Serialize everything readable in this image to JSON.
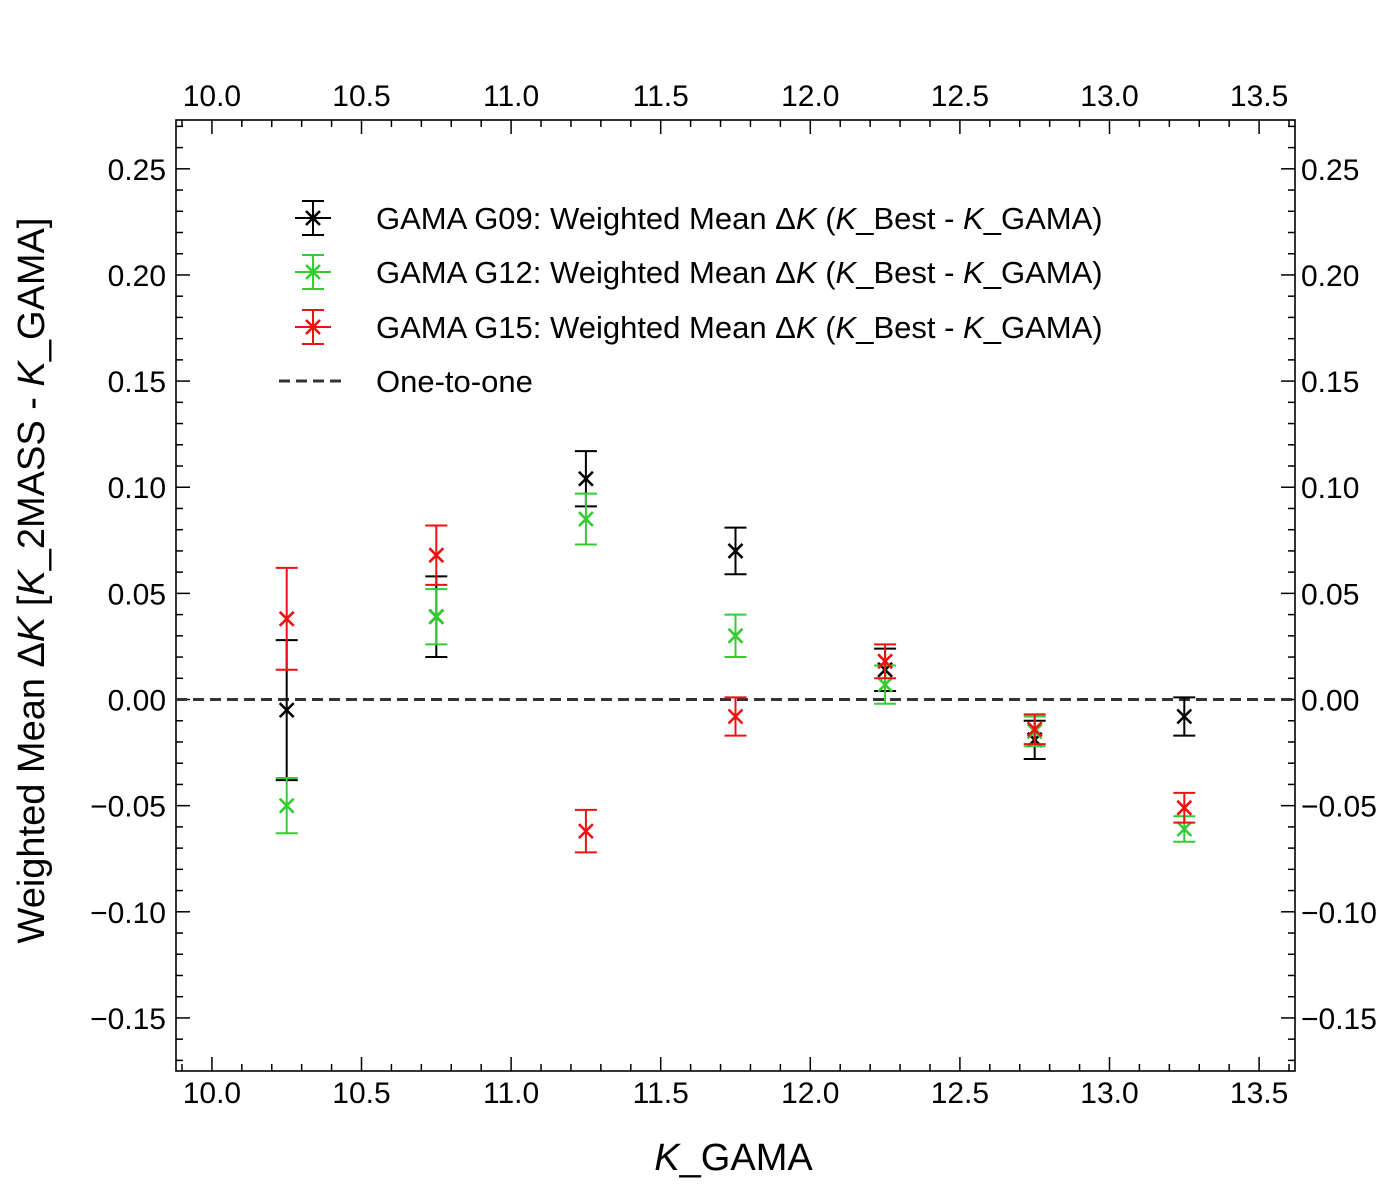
{
  "chart_data": {
    "type": "scatter",
    "title": "",
    "xlabel_italic": "K",
    "xlabel_rest": "_GAMA",
    "ylabel_parts": [
      {
        "text": "Weighted Mean Δ",
        "italic": false
      },
      {
        "text": "K",
        "italic": true
      },
      {
        "text": " [",
        "italic": false
      },
      {
        "text": "K",
        "italic": true
      },
      {
        "text": "_2MASS - ",
        "italic": false
      },
      {
        "text": "K",
        "italic": true
      },
      {
        "text": "_GAMA]",
        "italic": false
      }
    ],
    "xlim": [
      9.88,
      13.62
    ],
    "ylim": [
      -0.175,
      0.273
    ],
    "xticks": [
      10.0,
      10.5,
      11.0,
      11.5,
      12.0,
      12.5,
      13.0,
      13.5
    ],
    "xtick_labels": [
      "10.0",
      "10.5",
      "11.0",
      "11.5",
      "12.0",
      "12.5",
      "13.0",
      "13.5"
    ],
    "yticks": [
      -0.15,
      -0.1,
      -0.05,
      0.0,
      0.05,
      0.1,
      0.15,
      0.2,
      0.25
    ],
    "ytick_labels": [
      "−0.15",
      "−0.10",
      "−0.05",
      "0.00",
      "0.05",
      "0.10",
      "0.15",
      "0.20",
      "0.25"
    ],
    "x": [
      10.25,
      10.75,
      11.25,
      11.75,
      12.25,
      12.75,
      13.25
    ],
    "series": [
      {
        "name": "GAMA G09",
        "legend_parts": [
          {
            "text": "GAMA G09: Weighted Mean Δ",
            "italic": false
          },
          {
            "text": "K",
            "italic": true
          },
          {
            "text": " (",
            "italic": false
          },
          {
            "text": "K",
            "italic": true
          },
          {
            "text": "_Best - ",
            "italic": false
          },
          {
            "text": "K",
            "italic": true
          },
          {
            "text": "_GAMA)",
            "italic": false
          }
        ],
        "color": "#000000",
        "values": [
          -0.005,
          0.039,
          0.104,
          0.07,
          0.014,
          -0.019,
          -0.008
        ],
        "errors": [
          0.033,
          0.019,
          0.013,
          0.011,
          0.01,
          0.009,
          0.009
        ]
      },
      {
        "name": "GAMA G12",
        "legend_parts": [
          {
            "text": "GAMA G12: Weighted Mean Δ",
            "italic": false
          },
          {
            "text": "K",
            "italic": true
          },
          {
            "text": " (",
            "italic": false
          },
          {
            "text": "K",
            "italic": true
          },
          {
            "text": "_Best - ",
            "italic": false
          },
          {
            "text": "K",
            "italic": true
          },
          {
            "text": "_GAMA)",
            "italic": false
          }
        ],
        "color": "#33cc33",
        "values": [
          -0.05,
          0.039,
          0.085,
          0.03,
          0.007,
          -0.015,
          -0.061
        ],
        "errors": [
          0.013,
          0.013,
          0.012,
          0.01,
          0.009,
          0.007,
          0.006
        ]
      },
      {
        "name": "GAMA G15",
        "legend_parts": [
          {
            "text": "GAMA G15: Weighted Mean Δ",
            "italic": false
          },
          {
            "text": "K",
            "italic": true
          },
          {
            "text": " (",
            "italic": false
          },
          {
            "text": "K",
            "italic": true
          },
          {
            "text": "_Best - ",
            "italic": false
          },
          {
            "text": "K",
            "italic": true
          },
          {
            "text": "_GAMA)",
            "italic": false
          }
        ],
        "color": "#ee1111",
        "values": [
          0.038,
          0.068,
          -0.062,
          -0.008,
          0.018,
          -0.014,
          -0.051
        ],
        "errors": [
          0.024,
          0.014,
          0.01,
          0.009,
          0.008,
          0.007,
          0.007
        ]
      }
    ],
    "reference_line": {
      "label": "One-to-one",
      "y": 0.0,
      "style": "dashed",
      "color": "#333333"
    },
    "legend_position": "upper-left",
    "grid": false
  }
}
